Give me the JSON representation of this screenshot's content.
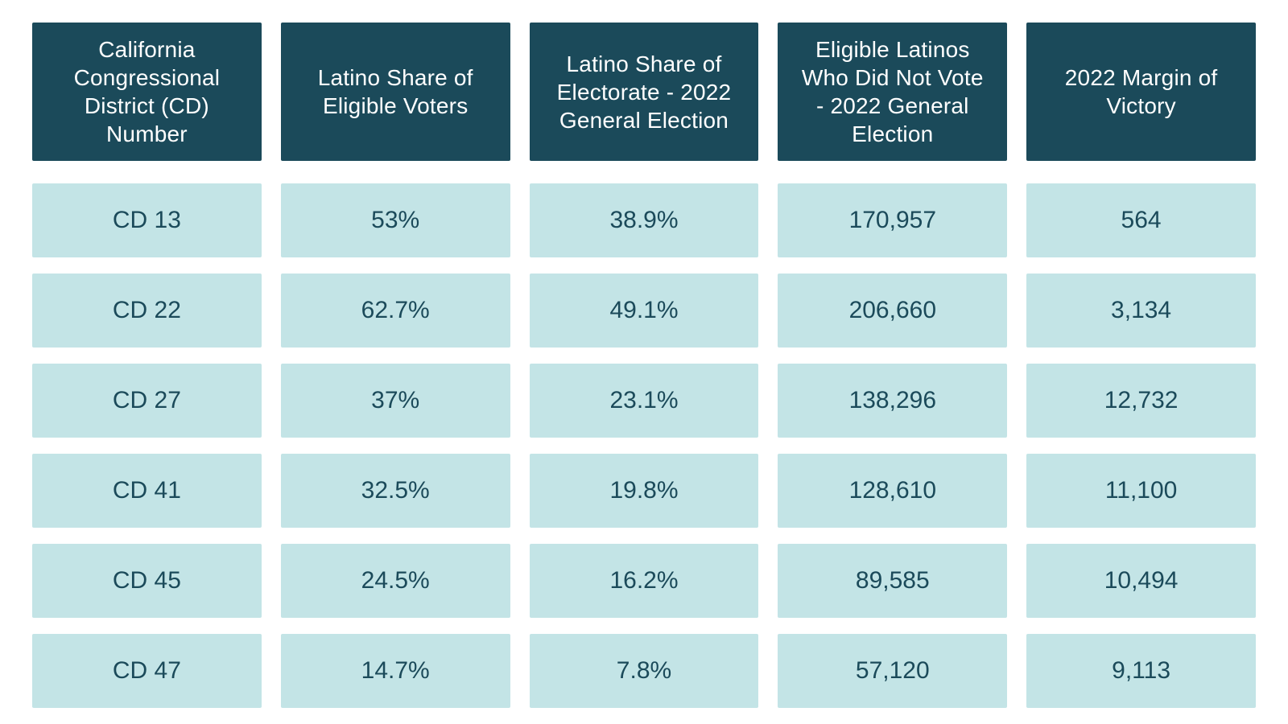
{
  "table": {
    "type": "table",
    "header_bg": "#1b4a5a",
    "header_text_color": "#ffffff",
    "data_bg": "#c3e4e6",
    "data_text_color": "#1b4a5a",
    "background": "#ffffff",
    "header_fontsize": 28,
    "data_fontsize": 30,
    "column_gap": 24,
    "row_gap": 20,
    "border_radius": 2,
    "columns": [
      "California Congressional District (CD) Number",
      "Latino Share of Eligible Voters",
      "Latino Share of Electorate - 2022 General Election",
      "Eligible Latinos Who Did Not Vote - 2022 General Election",
      "2022 Margin of Victory"
    ],
    "rows": [
      [
        "CD 13",
        "53%",
        "38.9%",
        "170,957",
        "564"
      ],
      [
        "CD 22",
        "62.7%",
        "49.1%",
        "206,660",
        "3,134"
      ],
      [
        "CD 27",
        "37%",
        "23.1%",
        "138,296",
        "12,732"
      ],
      [
        "CD 41",
        "32.5%",
        "19.8%",
        "128,610",
        "11,100"
      ],
      [
        "CD 45",
        "24.5%",
        "16.2%",
        "89,585",
        "10,494"
      ],
      [
        "CD 47",
        "14.7%",
        "7.8%",
        "57,120",
        "9,113"
      ]
    ]
  }
}
